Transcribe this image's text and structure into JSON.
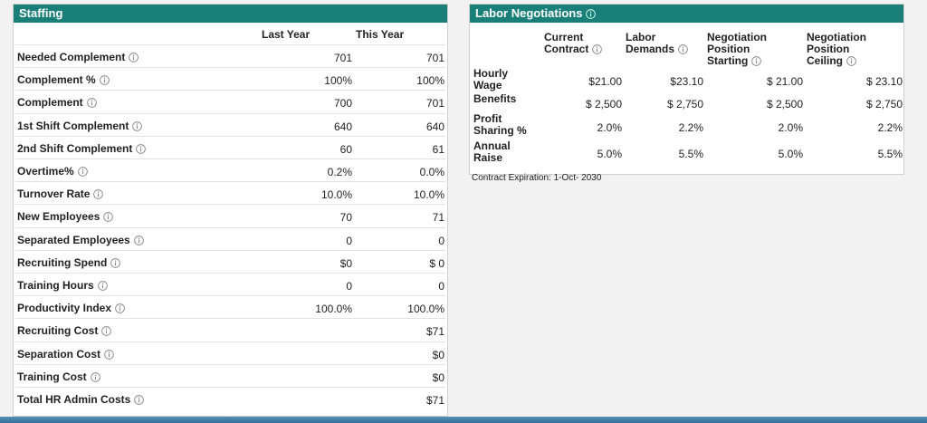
{
  "staffing": {
    "title": "Staffing",
    "columns": [
      "Last Year",
      "This Year"
    ],
    "rows": [
      {
        "label": "Needed Complement",
        "values": [
          "701",
          "701"
        ]
      },
      {
        "label": "Complement %",
        "values": [
          "100%",
          "100%"
        ]
      },
      {
        "label": "Complement",
        "values": [
          "700",
          "701"
        ]
      },
      {
        "label": "1st Shift Complement",
        "values": [
          "640",
          "640"
        ]
      },
      {
        "label": "2nd Shift Complement",
        "values": [
          "60",
          "61"
        ]
      },
      {
        "label": "Overtime%",
        "values": [
          "0.2%",
          "0.0%"
        ]
      },
      {
        "label": "Turnover Rate",
        "values": [
          "10.0%",
          "10.0%"
        ]
      },
      {
        "label": "New Employees",
        "values": [
          "70",
          "71"
        ]
      },
      {
        "label": "Separated Employees",
        "values": [
          "0",
          "0"
        ]
      },
      {
        "label": "Recruiting Spend",
        "values": [
          "$0",
          "$ 0"
        ]
      },
      {
        "label": "Training Hours",
        "values": [
          "0",
          "0"
        ]
      },
      {
        "label": "Productivity Index",
        "values": [
          "100.0%",
          "100.0%"
        ]
      },
      {
        "label": "Recruiting Cost",
        "values": [
          null,
          "$71"
        ]
      },
      {
        "label": "Separation Cost",
        "values": [
          null,
          "$0"
        ]
      },
      {
        "label": "Training Cost",
        "values": [
          null,
          "$0"
        ]
      },
      {
        "label": "Total HR Admin Costs",
        "values": [
          null,
          "$71"
        ]
      }
    ]
  },
  "labor": {
    "title": "Labor Negotiations",
    "columns": [
      "Current Contract",
      "Labor Demands",
      "Negotiation Position Starting",
      "Negotiation Position Ceiling"
    ],
    "rows": [
      {
        "label": "Hourly Wage",
        "values": [
          "$21.00",
          "$23.10",
          "$ 21.00",
          "$ 23.10"
        ]
      },
      {
        "label": "Benefits",
        "values": [
          "$ 2,500",
          "$ 2,750",
          "$ 2,500",
          "$ 2,750"
        ]
      },
      {
        "label": "Profit Sharing %",
        "values": [
          "2.0%",
          "2.2%",
          "2.0%",
          "2.2%"
        ]
      },
      {
        "label": "Annual Raise",
        "values": [
          "5.0%",
          "5.5%",
          "5.0%",
          "5.5%"
        ]
      }
    ],
    "footer": "Contract Expiration: 1-Oct- 2030"
  }
}
